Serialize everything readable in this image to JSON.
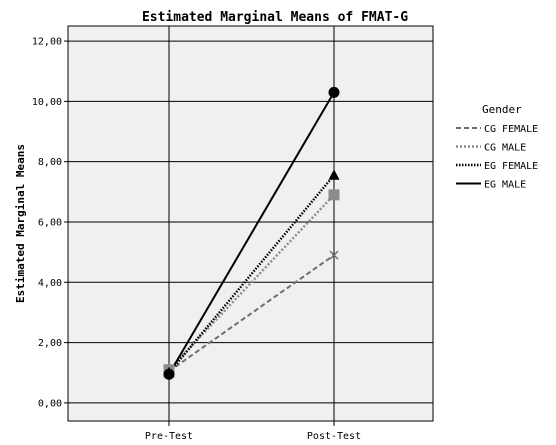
{
  "chart_data": {
    "type": "line",
    "title": "Estimated Marginal Means of FMAT-G",
    "ylabel": "Estimated Marginal Means",
    "xlabel": "",
    "categories": [
      "Pre-Test",
      "Post-Test"
    ],
    "ylim": [
      -0.6,
      12.5
    ],
    "yticks": [
      0,
      2,
      4,
      6,
      8,
      10,
      12
    ],
    "ytick_labels": [
      "0,00",
      "2,00",
      "4,00",
      "6,00",
      "8,00",
      "10,00",
      "12,00"
    ],
    "grid": true,
    "legend_title": "Gender",
    "legend_position": "right",
    "plot_background": "#f0f0f0",
    "series": [
      {
        "name": "CG FEMALE",
        "values": [
          1.05,
          4.9
        ],
        "color": "#6e6e6e",
        "dash": "dashed",
        "marker": "x"
      },
      {
        "name": "CG MALE",
        "values": [
          1.1,
          6.9
        ],
        "color": "#8c8c8c",
        "dash": "dotted",
        "marker": "square"
      },
      {
        "name": "EG FEMALE",
        "values": [
          1.0,
          7.55
        ],
        "color": "#000000",
        "dash": "dotted-dense",
        "marker": "triangle"
      },
      {
        "name": "EG MALE",
        "values": [
          0.95,
          10.3
        ],
        "color": "#000000",
        "dash": "solid",
        "marker": "circle"
      }
    ]
  }
}
